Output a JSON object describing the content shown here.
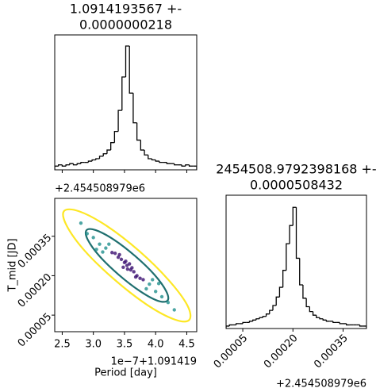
{
  "chart_data": [
    {
      "type": "histogram",
      "title": [
        "1.0914193567 +-",
        "0.0000000218"
      ],
      "color": "#000000",
      "bins": [
        2.38,
        2.44,
        2.5,
        2.56,
        2.62,
        2.68,
        2.74,
        2.8,
        2.86,
        2.92,
        2.98,
        3.04,
        3.1,
        3.16,
        3.22,
        3.28,
        3.34,
        3.4,
        3.46,
        3.52,
        3.58,
        3.64,
        3.7,
        3.76,
        3.82,
        3.88,
        3.94,
        4.0,
        4.06,
        4.12,
        4.18,
        4.24,
        4.3,
        4.36,
        4.42,
        4.48,
        4.54,
        4.6,
        4.66
      ],
      "values": [
        3,
        4,
        3,
        4,
        5,
        4,
        5,
        6,
        6,
        7,
        8,
        9,
        11,
        13,
        16,
        22,
        31,
        48,
        75,
        100,
        62,
        38,
        24,
        16,
        12,
        9,
        8,
        7,
        6,
        6,
        5,
        5,
        4,
        4,
        3,
        4,
        3,
        3
      ],
      "xlim": [
        2.38,
        4.66
      ],
      "ylim": [
        0,
        109
      ],
      "xticks": [
        2.5,
        3,
        3.5,
        4,
        4.5
      ],
      "xticklabels": false
    },
    {
      "type": "scatter",
      "xlabel": "Period [day]",
      "ylabel": "T_mid [JD]",
      "x_offset_text": "1e−7+1.091419",
      "y_offset_text": "+2.454508979e6",
      "xlim": [
        2.38,
        4.66
      ],
      "ylim": [
        -1.3e-05,
        0.000494
      ],
      "xticks": [
        2.5,
        {
          "value": 3,
          "label": "3.0"
        },
        3.5,
        {
          "value": 4,
          "label": "4.0"
        },
        4.5
      ],
      "yticks": [
        5e-05,
        {
          "value": 0.0002,
          "label": "0.00020"
        },
        0.00035
      ],
      "ytick_rotation": 45,
      "point_groups": [
        {
          "color": "#3b0f70",
          "x": [
            3.54,
            3.5,
            3.6,
            3.45,
            3.65,
            3.4,
            3.7,
            3.35,
            3.75,
            3.3,
            3.8,
            3.55,
            3.52,
            3.58,
            3.48,
            3.62,
            3.42,
            3.68
          ],
          "y": [
            0.000239,
            0.00025,
            0.000222,
            0.000262,
            0.000215,
            0.00027,
            0.0002,
            0.000285,
            0.00019,
            0.000288,
            0.000185,
            0.000225,
            0.000255,
            0.000245,
            0.000232,
            0.00023,
            0.00028,
            0.000195
          ]
        },
        {
          "color": "#21908d",
          "x": [
            3.2,
            3.9,
            3.1,
            4.0,
            3.0,
            4.1,
            2.9,
            4.2,
            3.25,
            3.85,
            3.15,
            3.95,
            2.8,
            4.3,
            3.05,
            4.05
          ],
          "y": [
            0.000305,
            0.000168,
            0.00032,
            0.00014,
            0.000345,
            0.00012,
            0.00036,
            9.8e-05,
            0.00032,
            0.00015,
            0.00029,
            0.000185,
            0.0004,
            7e-05,
            0.0003,
            0.00017
          ]
        }
      ],
      "contours": [
        {
          "color": "#fde725",
          "x": [
            4.54,
            4.31,
            3.87,
            3.34,
            2.86,
            2.57,
            2.53,
            2.77,
            3.21,
            3.74,
            4.21,
            4.51
          ],
          "y": [
            3.2e-05,
            3.3e-05,
            8.8e-05,
            0.000185,
            0.000295,
            0.000391,
            0.000446,
            0.000445,
            0.00039,
            0.000293,
            0.000183,
            8.7e-05
          ]
        },
        {
          "color": "#1f6f6f",
          "x": [
            4.19,
            4.03,
            3.75,
            3.41,
            3.1,
            2.91,
            2.89,
            3.04,
            3.33,
            3.67,
            3.98,
            4.17
          ],
          "y": [
            0.000105,
            0.000105,
            0.000141,
            0.000203,
            0.000274,
            0.000337,
            0.000373,
            0.000373,
            0.000337,
            0.000275,
            0.000204,
            0.000141
          ]
        }
      ]
    },
    {
      "type": "histogram",
      "title": [
        "2454508.9792398168 +-",
        "0.0000508432"
      ],
      "color": "#000000",
      "x_offset_text": "+2.454508979e6",
      "bins": [
        0,
        1e-05,
        2e-05,
        3e-05,
        4e-05,
        5e-05,
        6e-05,
        7e-05,
        8e-05,
        9e-05,
        0.0001,
        0.00011,
        0.00012,
        0.00013,
        0.00014,
        0.00015,
        0.00016,
        0.00017,
        0.00018,
        0.00019,
        0.0002,
        0.00021,
        0.00022,
        0.00023,
        0.00024,
        0.00025,
        0.00026,
        0.00027,
        0.00028,
        0.00029,
        0.0003,
        0.00031,
        0.00032,
        0.00033,
        0.00034,
        0.00035,
        0.00036,
        0.00037,
        0.00038,
        0.00039,
        0.0004,
        0.00041,
        0.00042
      ],
      "values": [
        2,
        3,
        3,
        4,
        4,
        5,
        5,
        6,
        7,
        8,
        9,
        10,
        12,
        15,
        19,
        26,
        34,
        48,
        70,
        85,
        100,
        58,
        36,
        25,
        18,
        14,
        11,
        9,
        8,
        7,
        6,
        6,
        5,
        5,
        4,
        4,
        3,
        3,
        3,
        3,
        2,
        2
      ],
      "xlim": [
        0,
        0.00042
      ],
      "ylim": [
        0,
        110
      ],
      "xticks": [
        5e-05,
        {
          "value": 0.0002,
          "label": "0.00020"
        },
        0.00035
      ],
      "xtick_rotation": 45
    }
  ]
}
